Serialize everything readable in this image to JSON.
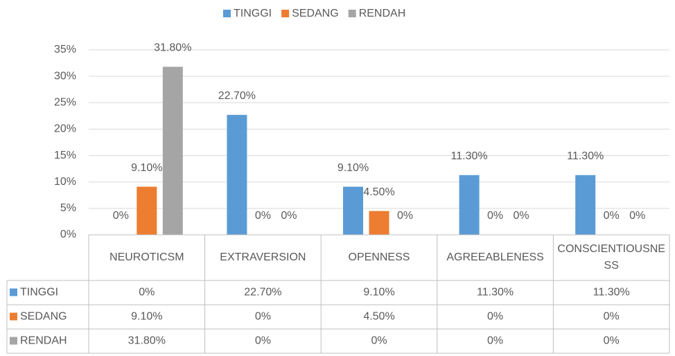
{
  "chart_data": {
    "type": "bar",
    "categories": [
      "NEUROTICSM",
      "EXTRAVERSION",
      "OPENNESS",
      "AGREEABLENESS",
      "CONSCIENTIOUSNESS"
    ],
    "series": [
      {
        "name": "TINGGI",
        "color": "#5b9bd5",
        "values": [
          0,
          22.7,
          9.1,
          11.3,
          11.3
        ],
        "value_labels": [
          "0%",
          "22.70%",
          "9.10%",
          "11.30%",
          "11.30%"
        ]
      },
      {
        "name": "SEDANG",
        "color": "#ed7d31",
        "values": [
          9.1,
          0,
          4.5,
          0,
          0
        ],
        "value_labels": [
          "9.10%",
          "0%",
          "4.50%",
          "0%",
          "0%"
        ]
      },
      {
        "name": "RENDAH",
        "color": "#a5a5a5",
        "values": [
          31.8,
          0,
          0,
          0,
          0
        ],
        "value_labels": [
          "31.80%",
          "0%",
          "0%",
          "0%",
          "0%"
        ]
      }
    ],
    "ylim": [
      0,
      35
    ],
    "yticks": [
      {
        "value": 0,
        "label": "0%"
      },
      {
        "value": 5,
        "label": "5%"
      },
      {
        "value": 10,
        "label": "10%"
      },
      {
        "value": 15,
        "label": "15%"
      },
      {
        "value": 20,
        "label": "20%"
      },
      {
        "value": 25,
        "label": "25%"
      },
      {
        "value": 30,
        "label": "30%"
      },
      {
        "value": 35,
        "label": "35%"
      }
    ],
    "grid": true,
    "legend": "top"
  }
}
